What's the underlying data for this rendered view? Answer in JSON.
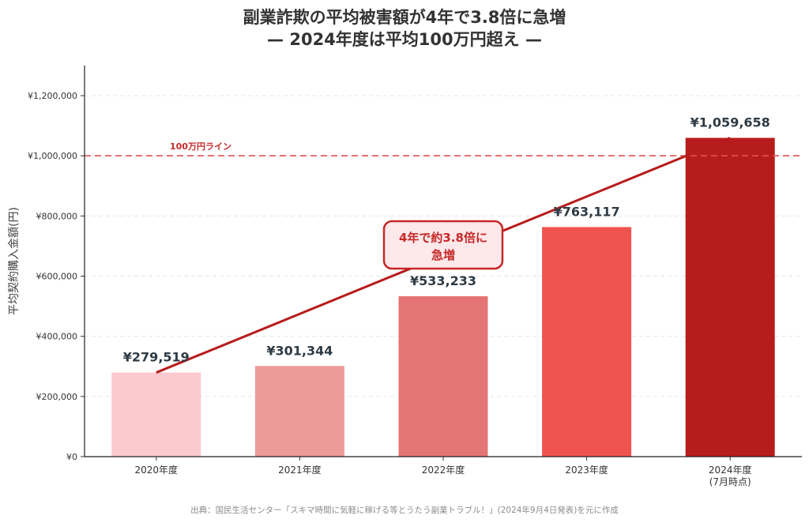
{
  "chart_data": {
    "type": "bar",
    "title": "副業詐欺の平均被害額が4年で3.8倍に急増",
    "subtitle": "— 2024年度は平均100万円超え —",
    "ylabel": "平均契約購入金額(円)",
    "xlabel": "",
    "categories": [
      "2020年度",
      "2021年度",
      "2022年度",
      "2023年度",
      "2024年度\n(7月時点)"
    ],
    "values": [
      279519,
      301344,
      533233,
      763117,
      1059658
    ],
    "value_labels": [
      "¥279,519",
      "¥301,344",
      "¥533,233",
      "¥763,117",
      "¥1,059,658"
    ],
    "bar_colors": [
      "#fcc9ce",
      "#ed9a9a",
      "#e57575",
      "#ef5350",
      "#b71c1c"
    ],
    "ylim": [
      0,
      1300000
    ],
    "yticks": [
      0,
      200000,
      400000,
      600000,
      800000,
      1000000,
      1200000
    ],
    "ytick_labels": [
      "¥0",
      "¥200,000",
      "¥400,000",
      "¥600,000",
      "¥800,000",
      "¥1,000,000",
      "¥1,200,000"
    ],
    "grid": true,
    "reference_line": {
      "value": 1000000,
      "label": "100万円ライン",
      "color": "#e05252"
    },
    "trend_line": {
      "from_index": 0,
      "to_index": 4,
      "color": "#b71c1c"
    },
    "annotation": {
      "text_line1": "4年で約3.8倍に",
      "text_line2": "急増",
      "color": "#c62828",
      "fill": "#fde8ea"
    }
  },
  "source": "出典：国民生活センター「スキマ時間に気軽に稼げる等とうたう副業トラブル！」(2024年9月4日発表)を元に作成"
}
